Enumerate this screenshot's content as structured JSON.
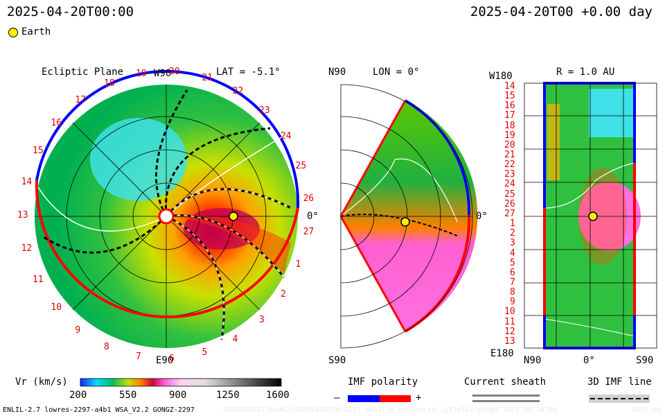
{
  "header": {
    "date_left": "2025-04-20T00:00",
    "date_right": "2025-04-20T00 +0.00 day",
    "legend_earth": "Earth"
  },
  "ecliptic": {
    "title": "Ecliptic Plane",
    "lat": "LAT = -5.1°",
    "top_label": "W90",
    "bottom_label": "E90",
    "right_label": "0°",
    "carrington_labels": [
      "19",
      "20",
      "21",
      "22",
      "23",
      "24",
      "25",
      "26",
      "27",
      "1",
      "2",
      "3",
      "4",
      "5",
      "6",
      "7",
      "8",
      "9",
      "10",
      "11",
      "12",
      "13",
      "14",
      "15",
      "16",
      "17",
      "18"
    ]
  },
  "meridional": {
    "top_label": "N90",
    "bottom_label": "S90",
    "lon": "LON = 0°",
    "right_label": "0°"
  },
  "sphere": {
    "r_label": "R = 1.0 AU",
    "top_left": "W180",
    "bottom_left": "E180",
    "bottom_n": "N90",
    "bottom_zero": "0°",
    "bottom_s": "S90",
    "rows": [
      "14",
      "15",
      "16",
      "17",
      "18",
      "19",
      "20",
      "21",
      "22",
      "23",
      "24",
      "25",
      "26",
      "27",
      "1",
      "2",
      "3",
      "4",
      "5",
      "6",
      "7",
      "8",
      "9",
      "10",
      "11",
      "12",
      "13"
    ]
  },
  "colorbar": {
    "label": "Vr (km/s)",
    "ticks": [
      "200",
      "550",
      "900",
      "1250",
      "1600"
    ]
  },
  "imf": {
    "title": "IMF polarity",
    "minus": "–",
    "plus": "+",
    "colors": {
      "negative": "#0000ff",
      "positive": "#ff0000"
    }
  },
  "sheath": {
    "title": "Current sheath"
  },
  "imf_line": {
    "title": "3D IMF line"
  },
  "footer": {
    "model": "ENLIL-2.7 lowres-2297-a4b1 WSA_V2.2 GONGZ-2297",
    "run_id": "UNIQUE0421164a62/20250420T00/2297-a4b1.16-noptemcsd-1g53q5s2.gongz-2025-04-20T00",
    "date_stub": "2025-04-21"
  }
}
